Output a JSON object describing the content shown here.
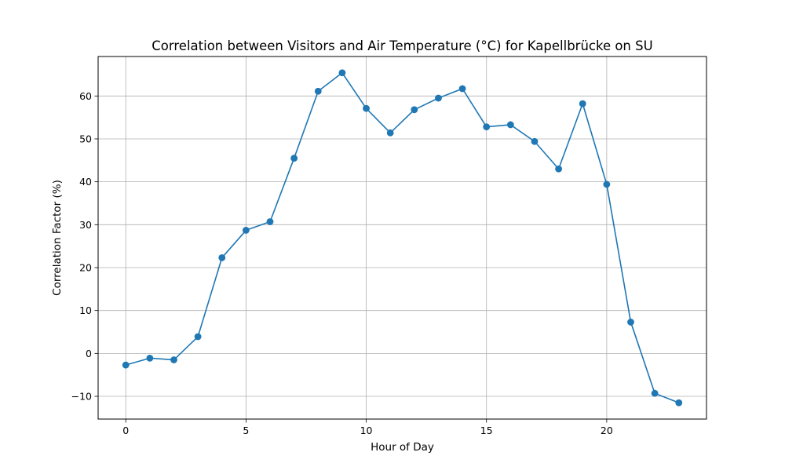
{
  "chart_data": {
    "type": "line",
    "title": "Correlation between Visitors and Air Temperature (°C) for Kapellbrücke on SU",
    "xlabel": "Hour of Day",
    "ylabel": "Correlation Factor (%)",
    "x": [
      0,
      1,
      2,
      3,
      4,
      5,
      6,
      7,
      8,
      9,
      10,
      11,
      12,
      13,
      14,
      15,
      16,
      17,
      18,
      19,
      20,
      21,
      22,
      23
    ],
    "series": [
      {
        "values": [
          -2.7,
          -1.1,
          -1.5,
          3.9,
          22.3,
          28.7,
          30.7,
          45.5,
          61.1,
          65.4,
          57.1,
          51.4,
          56.8,
          59.5,
          61.7,
          52.8,
          53.3,
          49.4,
          43.0,
          58.2,
          39.4,
          7.3,
          -9.3,
          -11.5
        ],
        "color": "#1f77b4",
        "marker": "circle"
      }
    ],
    "xlim": [
      -1.15,
      24.15
    ],
    "ylim": [
      -15.3,
      69.2
    ],
    "xticks": [
      0,
      5,
      10,
      15,
      20
    ],
    "yticks": [
      -10,
      0,
      10,
      20,
      30,
      40,
      50,
      60
    ],
    "grid": true,
    "legend": "none"
  }
}
